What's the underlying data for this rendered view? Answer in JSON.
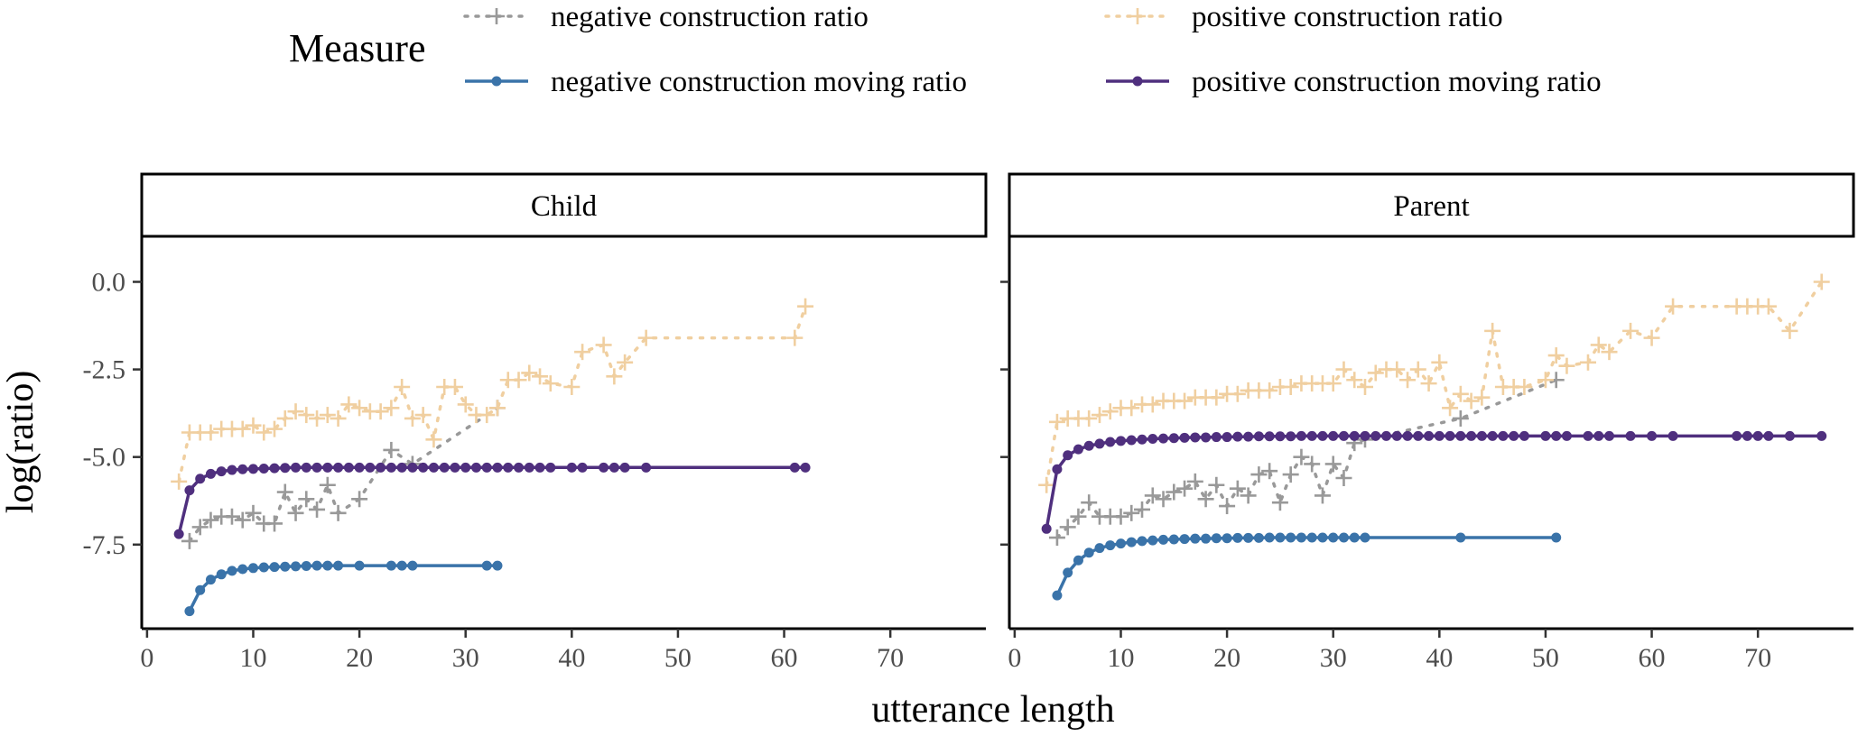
{
  "chart_data": {
    "type": "line",
    "title": "",
    "xlabel": "utterance length",
    "ylabel": "log(ratio)",
    "xlim": [
      -0.5,
      79
    ],
    "ylim": [
      -9.9,
      1.3
    ],
    "xticks": [
      0,
      10,
      20,
      30,
      40,
      50,
      60,
      70
    ],
    "yticks": [
      0,
      -2.5,
      -5,
      -7.5
    ],
    "xtick_labels": [
      "0",
      "10",
      "20",
      "30",
      "40",
      "50",
      "60",
      "70"
    ],
    "ytick_labels": [
      "0.0",
      "-2.5",
      "-5.0",
      "-7.5"
    ],
    "grid": false,
    "legend": {
      "title": "Measure",
      "position": "top",
      "entries": [
        {
          "label": "negative construction ratio",
          "color": "#999999",
          "style": "dotted-cross"
        },
        {
          "label": "positive construction ratio",
          "color": "#f0cfa0",
          "style": "dotted-cross"
        },
        {
          "label": "negative construction moving ratio",
          "color": "#3a73a9",
          "style": "solid-dot"
        },
        {
          "label": "positive construction moving ratio",
          "color": "#4f2f7e",
          "style": "solid-dot"
        }
      ]
    },
    "panels": [
      {
        "strip": "Child",
        "series": [
          {
            "name": "negative construction ratio",
            "color": "#999999",
            "style": "dotted-cross",
            "x": [
              4,
              5,
              6,
              7,
              8,
              9,
              10,
              11,
              12,
              13,
              14,
              15,
              16,
              17,
              18,
              20,
              23,
              25,
              33
            ],
            "y": [
              -7.4,
              -7.0,
              -6.8,
              -6.7,
              -6.7,
              -6.8,
              -6.6,
              -6.9,
              -6.9,
              -6.0,
              -6.6,
              -6.2,
              -6.5,
              -5.8,
              -6.6,
              -6.2,
              -4.8,
              -5.2,
              -3.6
            ]
          },
          {
            "name": "positive construction ratio",
            "color": "#f0cfa0",
            "style": "dotted-cross",
            "x": [
              3,
              4,
              5,
              6,
              7,
              8,
              9,
              10,
              11,
              12,
              13,
              14,
              15,
              16,
              17,
              18,
              19,
              20,
              21,
              22,
              23,
              24,
              25,
              26,
              27,
              28,
              29,
              30,
              31,
              32,
              33,
              34,
              35,
              36,
              37,
              38,
              40,
              41,
              43,
              44,
              45,
              47,
              61,
              62
            ],
            "y": [
              -5.7,
              -4.3,
              -4.3,
              -4.3,
              -4.2,
              -4.2,
              -4.2,
              -4.1,
              -4.3,
              -4.2,
              -3.9,
              -3.7,
              -3.8,
              -3.9,
              -3.8,
              -3.9,
              -3.5,
              -3.6,
              -3.7,
              -3.7,
              -3.6,
              -3.0,
              -3.9,
              -3.8,
              -4.5,
              -3.0,
              -3.0,
              -3.5,
              -3.8,
              -3.8,
              -3.6,
              -2.8,
              -2.8,
              -2.6,
              -2.7,
              -2.9,
              -3.0,
              -2.0,
              -1.8,
              -2.7,
              -2.3,
              -1.6,
              -1.6,
              -0.7
            ]
          },
          {
            "name": "negative construction moving ratio",
            "color": "#3a73a9",
            "style": "solid-dot",
            "x": [
              4,
              5,
              6,
              7,
              8,
              9,
              10,
              11,
              12,
              13,
              14,
              15,
              16,
              17,
              18,
              20,
              23,
              24,
              25,
              32,
              33
            ],
            "y": [
              -9.4,
              -8.8,
              -8.5,
              -8.35,
              -8.25,
              -8.2,
              -8.17,
              -8.15,
              -8.14,
              -8.13,
              -8.12,
              -8.11,
              -8.1,
              -8.1,
              -8.1,
              -8.1,
              -8.1,
              -8.1,
              -8.1,
              -8.1,
              -8.1
            ]
          },
          {
            "name": "positive construction moving ratio",
            "color": "#4f2f7e",
            "style": "solid-dot",
            "x": [
              3,
              4,
              5,
              6,
              7,
              8,
              9,
              10,
              11,
              12,
              13,
              14,
              15,
              16,
              17,
              18,
              19,
              20,
              21,
              22,
              23,
              24,
              25,
              26,
              27,
              28,
              29,
              30,
              31,
              32,
              33,
              34,
              35,
              36,
              37,
              38,
              40,
              41,
              43,
              44,
              45,
              47,
              61,
              62
            ],
            "y": [
              -7.2,
              -5.95,
              -5.62,
              -5.48,
              -5.41,
              -5.37,
              -5.35,
              -5.34,
              -5.33,
              -5.32,
              -5.31,
              -5.3,
              -5.3,
              -5.3,
              -5.3,
              -5.3,
              -5.3,
              -5.3,
              -5.3,
              -5.3,
              -5.3,
              -5.3,
              -5.3,
              -5.3,
              -5.3,
              -5.3,
              -5.3,
              -5.3,
              -5.3,
              -5.3,
              -5.3,
              -5.3,
              -5.3,
              -5.3,
              -5.3,
              -5.3,
              -5.3,
              -5.3,
              -5.3,
              -5.3,
              -5.3,
              -5.3,
              -5.3,
              -5.3
            ]
          }
        ]
      },
      {
        "strip": "Parent",
        "series": [
          {
            "name": "negative construction ratio",
            "color": "#999999",
            "style": "dotted-cross",
            "x": [
              4,
              5,
              6,
              7,
              8,
              9,
              10,
              11,
              12,
              13,
              14,
              15,
              16,
              17,
              18,
              19,
              20,
              21,
              22,
              23,
              24,
              25,
              26,
              27,
              28,
              29,
              30,
              31,
              32,
              33,
              42,
              51
            ],
            "y": [
              -7.3,
              -7.0,
              -6.7,
              -6.3,
              -6.7,
              -6.7,
              -6.7,
              -6.6,
              -6.5,
              -6.1,
              -6.2,
              -6.0,
              -5.9,
              -5.7,
              -6.2,
              -5.8,
              -6.4,
              -5.9,
              -6.1,
              -5.5,
              -5.4,
              -6.3,
              -5.5,
              -5.0,
              -5.2,
              -6.1,
              -5.2,
              -5.6,
              -4.6,
              -4.5,
              -3.9,
              -2.8
            ]
          },
          {
            "name": "positive construction ratio",
            "color": "#f0cfa0",
            "style": "dotted-cross",
            "x": [
              3,
              4,
              5,
              6,
              7,
              8,
              9,
              10,
              11,
              12,
              13,
              14,
              15,
              16,
              17,
              18,
              19,
              20,
              21,
              22,
              23,
              24,
              25,
              26,
              27,
              28,
              29,
              30,
              31,
              32,
              33,
              34,
              35,
              36,
              37,
              38,
              39,
              40,
              41,
              42,
              43,
              44,
              45,
              46,
              47,
              48,
              50,
              51,
              52,
              54,
              55,
              56,
              58,
              60,
              62,
              68,
              69,
              70,
              71,
              73,
              76
            ],
            "y": [
              -5.8,
              -4.0,
              -3.9,
              -3.9,
              -3.9,
              -3.8,
              -3.7,
              -3.6,
              -3.6,
              -3.5,
              -3.5,
              -3.4,
              -3.4,
              -3.4,
              -3.3,
              -3.3,
              -3.3,
              -3.2,
              -3.2,
              -3.1,
              -3.1,
              -3.1,
              -3.0,
              -3.0,
              -2.9,
              -2.9,
              -2.9,
              -2.9,
              -2.5,
              -2.8,
              -3.0,
              -2.6,
              -2.5,
              -2.5,
              -2.8,
              -2.5,
              -2.9,
              -2.3,
              -3.6,
              -3.2,
              -3.4,
              -3.3,
              -1.4,
              -3.0,
              -3.0,
              -3.0,
              -2.8,
              -2.1,
              -2.4,
              -2.3,
              -1.8,
              -2.0,
              -1.4,
              -1.6,
              -0.7,
              -0.7,
              -0.7,
              -0.7,
              -0.7,
              -1.4,
              0.0
            ]
          },
          {
            "name": "negative construction moving ratio",
            "color": "#3a73a9",
            "style": "solid-dot",
            "x": [
              4,
              5,
              6,
              7,
              8,
              9,
              10,
              11,
              12,
              13,
              14,
              15,
              16,
              17,
              18,
              19,
              20,
              21,
              22,
              23,
              24,
              25,
              26,
              27,
              28,
              29,
              30,
              31,
              32,
              33,
              42,
              51
            ],
            "y": [
              -8.95,
              -8.3,
              -7.95,
              -7.73,
              -7.6,
              -7.52,
              -7.47,
              -7.43,
              -7.4,
              -7.38,
              -7.36,
              -7.35,
              -7.34,
              -7.33,
              -7.33,
              -7.32,
              -7.32,
              -7.31,
              -7.31,
              -7.31,
              -7.3,
              -7.3,
              -7.3,
              -7.3,
              -7.3,
              -7.3,
              -7.3,
              -7.3,
              -7.3,
              -7.3,
              -7.3,
              -7.3
            ]
          },
          {
            "name": "positive construction moving ratio",
            "color": "#4f2f7e",
            "style": "solid-dot",
            "x": [
              3,
              4,
              5,
              6,
              7,
              8,
              9,
              10,
              11,
              12,
              13,
              14,
              15,
              16,
              17,
              18,
              19,
              20,
              21,
              22,
              23,
              24,
              25,
              26,
              27,
              28,
              29,
              30,
              31,
              32,
              33,
              34,
              35,
              36,
              37,
              38,
              39,
              40,
              41,
              42,
              43,
              44,
              45,
              46,
              47,
              48,
              50,
              51,
              52,
              54,
              55,
              56,
              58,
              60,
              62,
              68,
              69,
              70,
              71,
              73,
              76
            ],
            "y": [
              -7.05,
              -5.35,
              -4.95,
              -4.78,
              -4.68,
              -4.62,
              -4.57,
              -4.54,
              -4.52,
              -4.5,
              -4.48,
              -4.47,
              -4.46,
              -4.45,
              -4.44,
              -4.44,
              -4.43,
              -4.43,
              -4.42,
              -4.42,
              -4.41,
              -4.41,
              -4.41,
              -4.41,
              -4.4,
              -4.4,
              -4.4,
              -4.4,
              -4.4,
              -4.4,
              -4.4,
              -4.4,
              -4.4,
              -4.4,
              -4.4,
              -4.4,
              -4.4,
              -4.4,
              -4.4,
              -4.4,
              -4.4,
              -4.4,
              -4.4,
              -4.4,
              -4.4,
              -4.4,
              -4.4,
              -4.4,
              -4.4,
              -4.4,
              -4.4,
              -4.4,
              -4.4,
              -4.4,
              -4.4,
              -4.4,
              -4.4,
              -4.4,
              -4.4,
              -4.4,
              -4.4
            ]
          }
        ]
      }
    ]
  }
}
